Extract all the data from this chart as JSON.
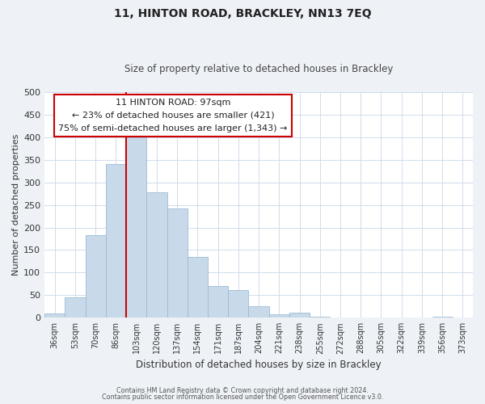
{
  "title": "11, HINTON ROAD, BRACKLEY, NN13 7EQ",
  "subtitle": "Size of property relative to detached houses in Brackley",
  "xlabel": "Distribution of detached houses by size in Brackley",
  "ylabel": "Number of detached properties",
  "bar_labels": [
    "36sqm",
    "53sqm",
    "70sqm",
    "86sqm",
    "103sqm",
    "120sqm",
    "137sqm",
    "154sqm",
    "171sqm",
    "187sqm",
    "204sqm",
    "221sqm",
    "238sqm",
    "255sqm",
    "272sqm",
    "288sqm",
    "305sqm",
    "322sqm",
    "339sqm",
    "356sqm",
    "373sqm"
  ],
  "bar_heights": [
    10,
    46,
    183,
    340,
    400,
    278,
    242,
    135,
    70,
    62,
    25,
    8,
    11,
    2,
    1,
    0,
    0,
    0,
    0,
    2,
    1
  ],
  "bar_color": "#c8daea",
  "bar_edge_color": "#9bbcd4",
  "vline_x_index": 4,
  "vline_color": "#cc0000",
  "annotation_title": "11 HINTON ROAD: 97sqm",
  "annotation_line1": "← 23% of detached houses are smaller (421)",
  "annotation_line2": "75% of semi-detached houses are larger (1,343) →",
  "annotation_box_color": "#ffffff",
  "annotation_box_edge": "#cc0000",
  "ylim": [
    0,
    500
  ],
  "yticks": [
    0,
    50,
    100,
    150,
    200,
    250,
    300,
    350,
    400,
    450,
    500
  ],
  "footer1": "Contains HM Land Registry data © Crown copyright and database right 2024.",
  "footer2": "Contains public sector information licensed under the Open Government Licence v3.0.",
  "bg_color": "#eef2f7",
  "plot_bg_color": "#ffffff",
  "grid_color": "#d0dcea"
}
